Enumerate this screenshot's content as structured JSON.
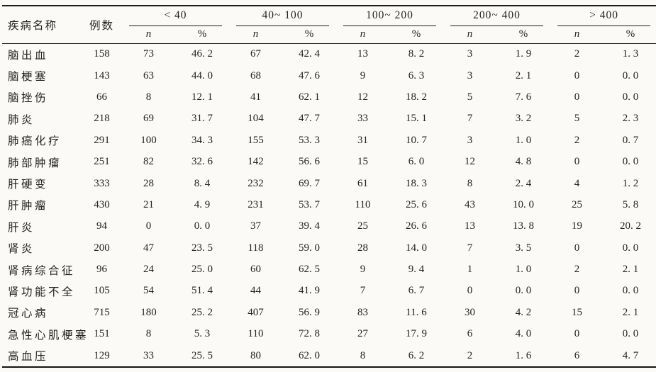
{
  "colors": {
    "paper": "#fbfaf7",
    "ink": "#232323",
    "rule": "#1c1c1c"
  },
  "chart_data": {
    "type": "table",
    "columns": {
      "disease": "疾病名称",
      "cases": "例数",
      "dose_groups": [
        "< 40",
        "40~ 100",
        "100~ 200",
        "200~ 400",
        "> 400"
      ],
      "sub_n": "n",
      "sub_pct": "%"
    },
    "rows": [
      {
        "disease": "脑出血",
        "cases": "158",
        "values": [
          "73",
          "46. 2",
          "67",
          "42. 4",
          "13",
          "8. 2",
          "3",
          "1. 9",
          "2",
          "1. 3"
        ]
      },
      {
        "disease": "脑梗塞",
        "cases": "143",
        "values": [
          "63",
          "44. 0",
          "68",
          "47. 6",
          "9",
          "6. 3",
          "3",
          "2. 1",
          "0",
          "0. 0"
        ]
      },
      {
        "disease": "脑挫伤",
        "cases": "66",
        "values": [
          "8",
          "12. 1",
          "41",
          "62. 1",
          "12",
          "18. 2",
          "5",
          "7. 6",
          "0",
          "0. 0"
        ]
      },
      {
        "disease": "肺炎",
        "cases": "218",
        "values": [
          "69",
          "31. 7",
          "104",
          "47. 7",
          "33",
          "15. 1",
          "7",
          "3. 2",
          "5",
          "2. 3"
        ]
      },
      {
        "disease": "肺癌化疗",
        "cases": "291",
        "values": [
          "100",
          "34. 3",
          "155",
          "53. 3",
          "31",
          "10. 7",
          "3",
          "1. 0",
          "2",
          "0. 7"
        ]
      },
      {
        "disease": "肺部肿瘤",
        "cases": "251",
        "values": [
          "82",
          "32. 6",
          "142",
          "56. 6",
          "15",
          "6. 0",
          "12",
          "4. 8",
          "0",
          "0. 0"
        ]
      },
      {
        "disease": "肝硬变",
        "cases": "333",
        "values": [
          "28",
          "8. 4",
          "232",
          "69. 7",
          "61",
          "18. 3",
          "8",
          "2. 4",
          "4",
          "1. 2"
        ]
      },
      {
        "disease": "肝肿瘤",
        "cases": "430",
        "values": [
          "21",
          "4. 9",
          "231",
          "53. 7",
          "110",
          "25. 6",
          "43",
          "10. 0",
          "25",
          "5. 8"
        ]
      },
      {
        "disease": "肝炎",
        "cases": "94",
        "values": [
          "0",
          "0. 0",
          "37",
          "39. 4",
          "25",
          "26. 6",
          "13",
          "13. 8",
          "19",
          "20. 2"
        ]
      },
      {
        "disease": "肾炎",
        "cases": "200",
        "values": [
          "47",
          "23. 5",
          "118",
          "59. 0",
          "28",
          "14. 0",
          "7",
          "3. 5",
          "0",
          "0. 0"
        ]
      },
      {
        "disease": "肾病综合征",
        "cases": "96",
        "values": [
          "24",
          "25. 0",
          "60",
          "62. 5",
          "9",
          "9. 4",
          "1",
          "1. 0",
          "2",
          "2. 1"
        ]
      },
      {
        "disease": "肾功能不全",
        "cases": "105",
        "values": [
          "54",
          "51. 4",
          "44",
          "41. 9",
          "7",
          "6. 7",
          "0",
          "0. 0",
          "0",
          "0. 0"
        ]
      },
      {
        "disease": "冠心病",
        "cases": "715",
        "values": [
          "180",
          "25. 2",
          "407",
          "56. 9",
          "83",
          "11. 6",
          "30",
          "4. 2",
          "15",
          "2. 1"
        ]
      },
      {
        "disease": "急性心肌梗塞",
        "cases": "151",
        "values": [
          "8",
          "5. 3",
          "110",
          "72. 8",
          "27",
          "17. 9",
          "6",
          "4. 0",
          "0",
          "0. 0"
        ]
      },
      {
        "disease": "高血压",
        "cases": "129",
        "values": [
          "33",
          "25. 5",
          "80",
          "62. 0",
          "8",
          "6. 2",
          "2",
          "1. 6",
          "6",
          "4. 7"
        ]
      }
    ]
  }
}
